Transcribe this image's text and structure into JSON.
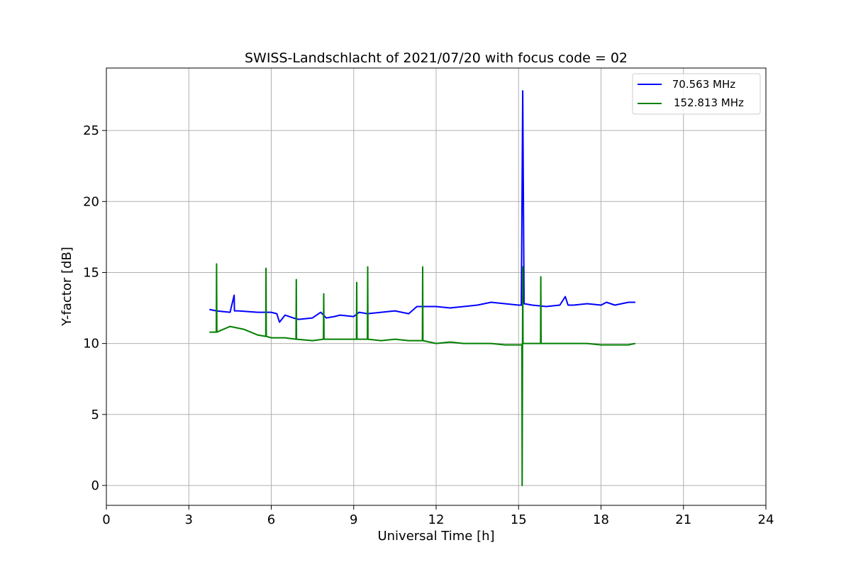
{
  "chart_data": {
    "type": "line",
    "title": "SWISS-Landschlacht of 2021/07/20 with focus code = 02",
    "xlabel": "Universal Time [h]",
    "ylabel": "Y-factor [dB]",
    "xlim": [
      0,
      24
    ],
    "ylim": [
      -1.4,
      29.4
    ],
    "xticks": [
      0,
      3,
      6,
      9,
      12,
      15,
      18,
      21,
      24
    ],
    "yticks": [
      0,
      5,
      10,
      15,
      20,
      25
    ],
    "grid": true,
    "legend_position": "top-right",
    "series": [
      {
        "name": " 70.563 MHz",
        "color": "#0000ff",
        "x": [
          3.75,
          4.0,
          4.5,
          4.65,
          4.66,
          4.8,
          5.5,
          6.0,
          6.2,
          6.3,
          6.5,
          6.8,
          7.0,
          7.5,
          7.8,
          8.0,
          8.3,
          8.5,
          9.0,
          9.2,
          9.5,
          10.0,
          10.5,
          11.0,
          11.3,
          11.5,
          12.0,
          12.5,
          13.0,
          13.5,
          14.0,
          14.5,
          15.0,
          15.1,
          15.15,
          15.2,
          15.5,
          16.0,
          16.5,
          16.7,
          16.8,
          17.0,
          17.5,
          18.0,
          18.2,
          18.5,
          19.0,
          19.25
        ],
        "y": [
          12.4,
          12.3,
          12.2,
          13.4,
          12.3,
          12.3,
          12.2,
          12.2,
          12.1,
          11.5,
          12.0,
          11.8,
          11.7,
          11.8,
          12.2,
          11.8,
          11.9,
          12.0,
          11.9,
          12.2,
          12.1,
          12.2,
          12.3,
          12.1,
          12.6,
          12.6,
          12.6,
          12.5,
          12.6,
          12.7,
          12.9,
          12.8,
          12.7,
          12.7,
          27.8,
          12.8,
          12.7,
          12.6,
          12.7,
          13.3,
          12.7,
          12.7,
          12.8,
          12.7,
          12.9,
          12.7,
          12.9,
          12.9
        ]
      },
      {
        "name": "152.813 MHz",
        "color": "#008000",
        "x": [
          3.75,
          4.0,
          4.01,
          4.02,
          4.5,
          5.0,
          5.5,
          5.8,
          5.81,
          5.82,
          6.0,
          6.5,
          6.9,
          6.91,
          6.92,
          7.5,
          7.9,
          7.91,
          7.92,
          8.5,
          9.0,
          9.1,
          9.11,
          9.12,
          9.5,
          9.51,
          9.52,
          10.0,
          10.5,
          11.0,
          11.5,
          11.51,
          11.52,
          12.0,
          12.5,
          13.0,
          13.5,
          14.0,
          14.5,
          15.0,
          15.12,
          15.13,
          15.15,
          15.16,
          15.5,
          15.8,
          15.81,
          15.82,
          16.0,
          16.5,
          17.0,
          17.5,
          18.0,
          18.5,
          19.0,
          19.25
        ],
        "y": [
          10.8,
          10.8,
          15.6,
          10.8,
          11.2,
          11.0,
          10.6,
          10.5,
          15.3,
          10.5,
          10.4,
          10.4,
          10.3,
          14.5,
          10.3,
          10.2,
          10.3,
          13.5,
          10.3,
          10.3,
          10.3,
          10.3,
          14.3,
          10.3,
          10.3,
          15.4,
          10.3,
          10.2,
          10.3,
          10.2,
          10.2,
          15.4,
          10.2,
          10.0,
          10.1,
          10.0,
          10.0,
          10.0,
          9.9,
          9.9,
          9.9,
          0.0,
          15.4,
          10.0,
          10.0,
          10.0,
          14.7,
          10.0,
          10.0,
          10.0,
          10.0,
          10.0,
          9.9,
          9.9,
          9.9,
          10.0
        ]
      }
    ]
  }
}
